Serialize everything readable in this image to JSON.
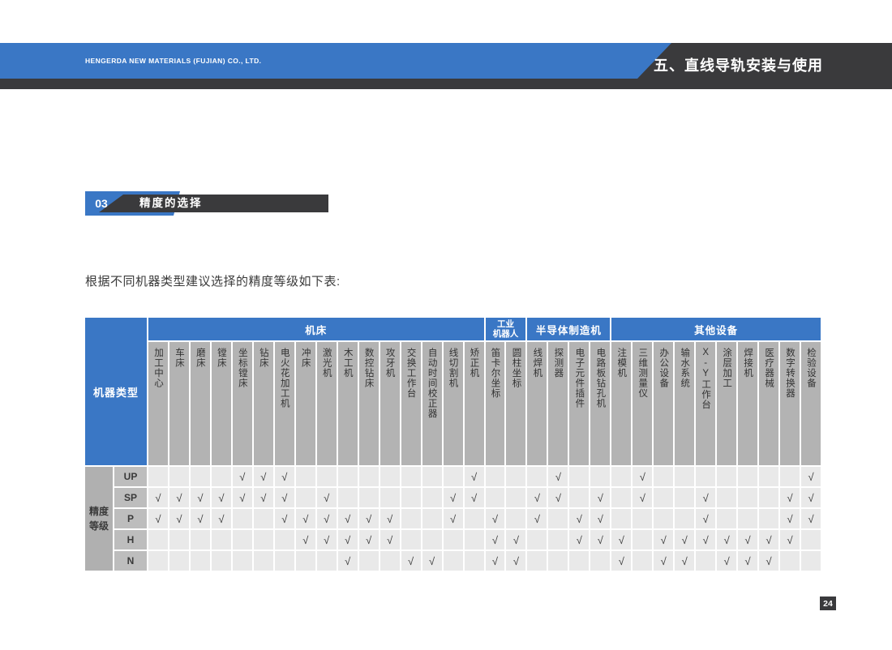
{
  "header": {
    "company": "HENGERDA NEW MATERIALS (FUJIAN) CO., LTD.",
    "page_title": "五、直线导轨安装与使用"
  },
  "section": {
    "number": "03",
    "title": "精度的选择"
  },
  "intro_text": "根据不同机器类型建议选择的精度等级如下表:",
  "colors": {
    "accent_blue": "#3a77c5",
    "dark": "#3a3a3c",
    "header_gray": "#b3b3b3",
    "row_label_gray": "#bdbdbd",
    "data_cell_gray": "#e9e9e9"
  },
  "table": {
    "corner_label": "机器类型",
    "row_group_label_lines": [
      "精度",
      "等级"
    ],
    "check_mark": "√",
    "groups": [
      {
        "label": "机床",
        "span": 16
      },
      {
        "label": "工业机器人",
        "span": 2,
        "lines": [
          "工业",
          "机器人"
        ]
      },
      {
        "label": "半导体制造机",
        "span": 4
      },
      {
        "label": "其他设备",
        "span": 10
      }
    ],
    "columns": [
      "加工中心",
      "车床",
      "磨床",
      "镗床",
      "坐标镗床",
      "钻床",
      "电火花加工机",
      "冲床",
      "激光机",
      "木工机",
      "数控钻床",
      "攻牙机",
      "交换工作台",
      "自动时间校正器",
      "线切割机",
      "矫正机",
      "笛卡尔坐标",
      "圆柱坐标",
      "线焊机",
      "探测器",
      "电子元件插件",
      "电路板钻孔机",
      "注模机",
      "三维测量仪",
      "办公设备",
      "输水系统",
      "X-Y工作台",
      "涂层加工",
      "焊接机",
      "医疗器械",
      "数字转换器",
      "检验设备"
    ],
    "rows": [
      {
        "label": "UP",
        "checks": [
          0,
          0,
          0,
          0,
          1,
          1,
          1,
          0,
          0,
          0,
          0,
          0,
          0,
          0,
          0,
          1,
          0,
          0,
          0,
          1,
          0,
          0,
          0,
          1,
          0,
          0,
          0,
          0,
          0,
          0,
          0,
          1
        ]
      },
      {
        "label": "SP",
        "checks": [
          1,
          1,
          1,
          1,
          1,
          1,
          1,
          0,
          1,
          0,
          0,
          0,
          0,
          0,
          1,
          1,
          0,
          0,
          1,
          1,
          0,
          1,
          0,
          1,
          0,
          0,
          1,
          0,
          0,
          0,
          1,
          1
        ]
      },
      {
        "label": "P",
        "checks": [
          1,
          1,
          1,
          1,
          0,
          0,
          1,
          1,
          1,
          1,
          1,
          1,
          0,
          0,
          1,
          0,
          1,
          0,
          1,
          0,
          1,
          1,
          0,
          0,
          0,
          0,
          1,
          0,
          0,
          0,
          1,
          1
        ]
      },
      {
        "label": "H",
        "checks": [
          0,
          0,
          0,
          0,
          0,
          0,
          0,
          1,
          1,
          1,
          1,
          1,
          0,
          0,
          0,
          0,
          1,
          1,
          0,
          0,
          1,
          1,
          1,
          0,
          1,
          1,
          1,
          1,
          1,
          1,
          1,
          0
        ]
      },
      {
        "label": "N",
        "checks": [
          0,
          0,
          0,
          0,
          0,
          0,
          0,
          0,
          0,
          1,
          0,
          0,
          1,
          1,
          0,
          0,
          1,
          1,
          0,
          0,
          0,
          0,
          1,
          0,
          1,
          1,
          0,
          1,
          1,
          1,
          0,
          0
        ]
      }
    ]
  },
  "page_number": "24"
}
